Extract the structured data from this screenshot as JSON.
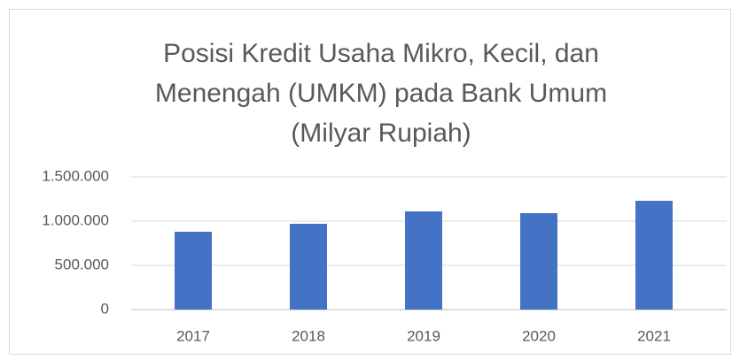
{
  "chart_data": {
    "type": "bar",
    "title": [
      "Posisi Kredit Usaha Mikro, Kecil, dan",
      "Menengah (UMKM) pada Bank Umum",
      "(Milyar Rupiah)"
    ],
    "categories": [
      "2017",
      "2018",
      "2019",
      "2020",
      "2021"
    ],
    "values": [
      880000,
      970000,
      1110000,
      1090000,
      1230000
    ],
    "color": "#4472c4",
    "ylim": [
      0,
      1500000
    ],
    "yticks": [
      0,
      {
        "value": 500000,
        "label": "500.000"
      },
      {
        "value": 1000000,
        "label": "1.000.000"
      },
      {
        "value": 1500000,
        "label": "1.500.000"
      }
    ],
    "grid": true
  }
}
